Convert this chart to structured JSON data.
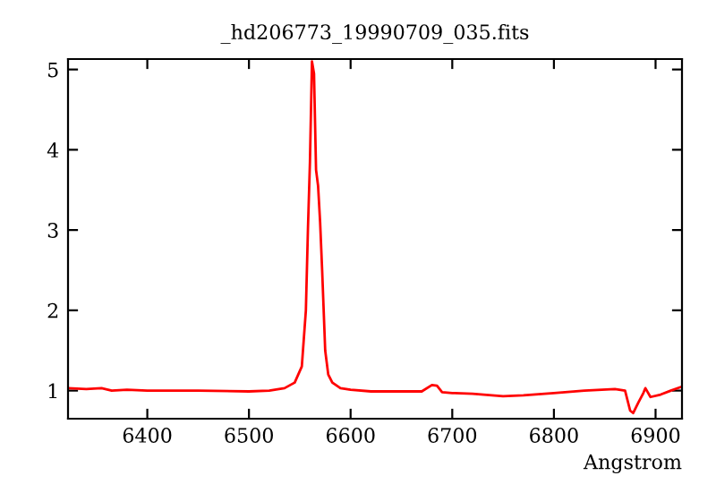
{
  "chart_data": {
    "type": "line",
    "title": "_hd206773_19990709_035.fits",
    "xlabel": "Angstrom",
    "x": [
      6322,
      6340,
      6355,
      6365,
      6380,
      6400,
      6450,
      6500,
      6520,
      6535,
      6545,
      6552,
      6556,
      6558,
      6560,
      6562,
      6564,
      6566,
      6568,
      6570,
      6572,
      6575,
      6578,
      6582,
      6590,
      6600,
      6620,
      6650,
      6670,
      6680,
      6685,
      6690,
      6700,
      6720,
      6750,
      6770,
      6800,
      6830,
      6860,
      6870,
      6875,
      6878,
      6883,
      6888,
      6890,
      6895,
      6905,
      6915,
      6926
    ],
    "series": [
      {
        "color": "#ff0000",
        "values": [
          1.03,
          1.02,
          1.03,
          1.0,
          1.01,
          1.0,
          1.0,
          0.99,
          1.0,
          1.03,
          1.1,
          1.3,
          2.0,
          3.0,
          3.85,
          5.1,
          4.95,
          3.75,
          3.55,
          3.1,
          2.5,
          1.5,
          1.2,
          1.1,
          1.03,
          1.01,
          0.99,
          0.99,
          0.99,
          1.07,
          1.06,
          0.98,
          0.97,
          0.96,
          0.93,
          0.94,
          0.97,
          1.0,
          1.02,
          1.0,
          0.75,
          0.72,
          0.85,
          0.97,
          1.03,
          0.92,
          0.95,
          1.0,
          1.05
        ]
      }
    ],
    "xlim": [
      6322,
      6926
    ],
    "xticks": [
      6400,
      6500,
      6600,
      6700,
      6800,
      6900
    ],
    "ylim": [
      0.65,
      5.13
    ],
    "yticks": [
      1,
      2,
      3,
      4,
      5
    ],
    "grid": false,
    "legend": false
  }
}
